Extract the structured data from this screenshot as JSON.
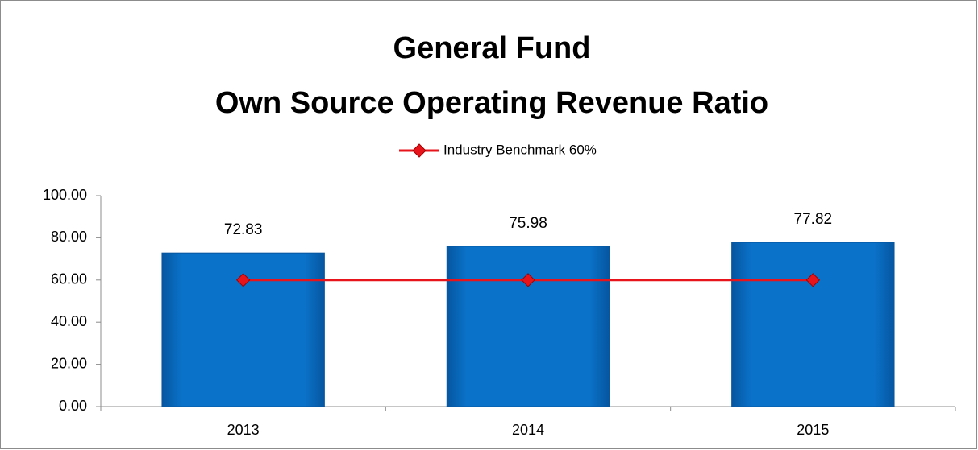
{
  "chart_data": {
    "type": "bar",
    "title": [
      "General Fund",
      "Own Source Operating Revenue Ratio"
    ],
    "categories": [
      "2013",
      "2014",
      "2015"
    ],
    "series": [
      {
        "type": "bar",
        "color": "#0a72c8",
        "values": [
          72.83,
          75.98,
          77.82
        ]
      },
      {
        "type": "line",
        "name": "Industry Benchmark 60%",
        "color": "#e8141c",
        "values": [
          60,
          60,
          60
        ]
      }
    ],
    "ylim": [
      0,
      100
    ],
    "yticks": [
      {
        "value": 0,
        "label": "0.00"
      },
      {
        "value": 20,
        "label": "20.00"
      },
      {
        "value": 40,
        "label": "40.00"
      },
      {
        "value": 60,
        "label": "60.00"
      },
      {
        "value": 80,
        "label": "80.00"
      },
      {
        "value": 100,
        "label": "100.00"
      }
    ],
    "legend": "top"
  }
}
